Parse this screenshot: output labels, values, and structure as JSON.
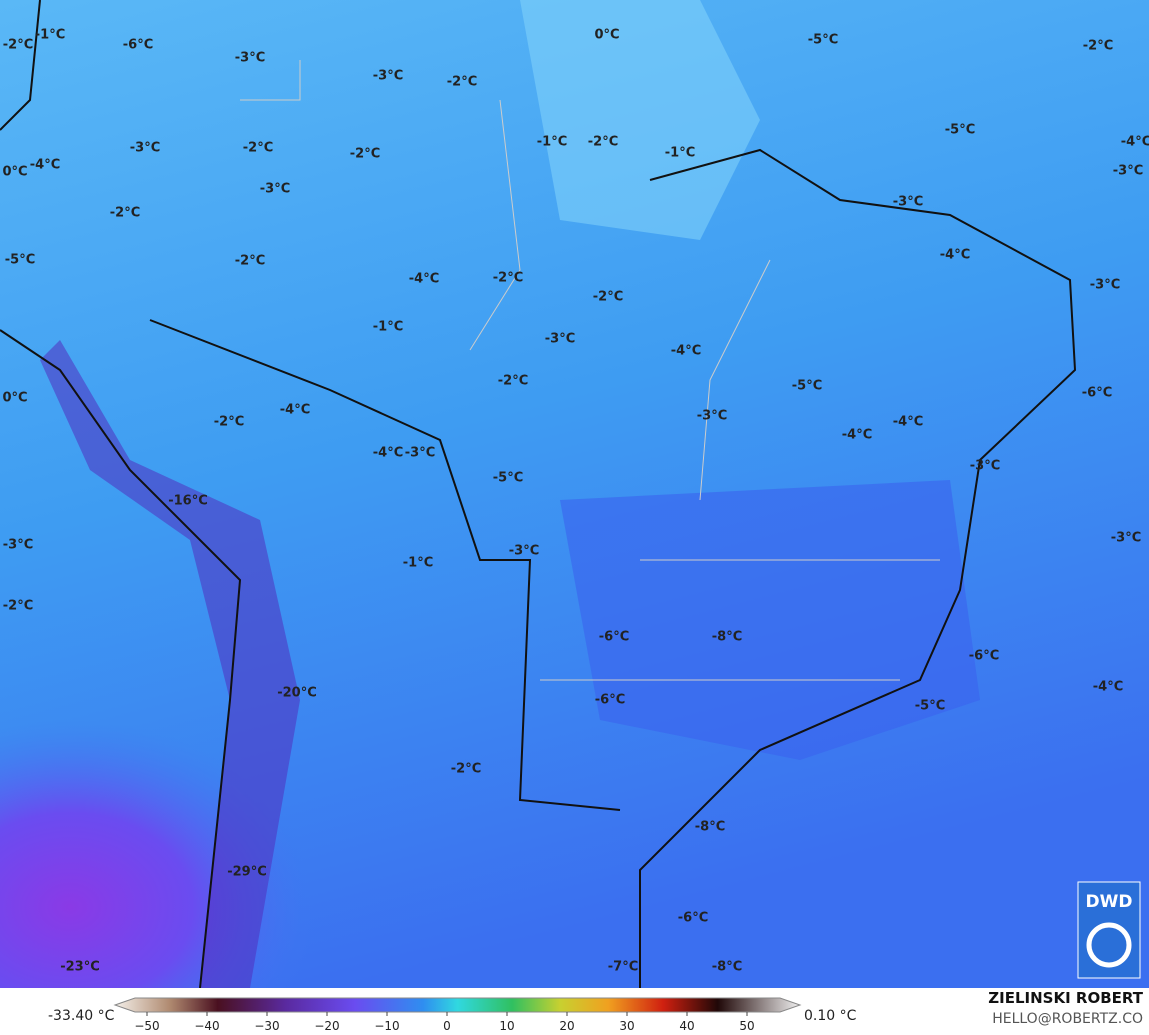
{
  "map": {
    "labels": [
      "-2°C",
      "-1°C",
      "-6°C",
      "0°C",
      "-5°C",
      "-2°C",
      "-3°C",
      "-3°C",
      "-2°C",
      "-5°C",
      "-4°C",
      "-3°C",
      "-2°C",
      "-2°C",
      "-1°C",
      "-2°C",
      "-1°C",
      "-4°C",
      "0°C",
      "-3°C",
      "-3°C",
      "-3°C",
      "-2°C",
      "-4°C",
      "-2°C",
      "-5°C",
      "-4°C",
      "-2°C",
      "-3°C",
      "-2°C",
      "-1°C",
      "-3°C",
      "-4°C",
      "-2°C",
      "-5°C",
      "-6°C",
      "0°C",
      "-3°C",
      "-2°C",
      "-4°C",
      "-4°C",
      "-4°C",
      "-4°C",
      "-3°C",
      "-3°C",
      "-5°C",
      "-16°C",
      "-3°C",
      "-3°C",
      "-3°C",
      "-1°C",
      "-2°C",
      "-6°C",
      "-8°C",
      "-6°C",
      "-4°C",
      "-20°C",
      "-6°C",
      "-5°C",
      "-2°C",
      "-8°C",
      "-29°C",
      "-6°C",
      "-23°C",
      "-7°C",
      "-8°C"
    ]
  },
  "colorbar": {
    "min_label": "-33.40 °C",
    "max_label": "0.10 °C",
    "ticks": [
      "−50",
      "−40",
      "−30",
      "−20",
      "−10",
      "0",
      "10",
      "20",
      "30",
      "40",
      "50"
    ]
  },
  "credits": {
    "name": "ZIELINSKI ROBERT",
    "email": "HELLO@ROBERTZ.CO",
    "logo": "DWD"
  }
}
